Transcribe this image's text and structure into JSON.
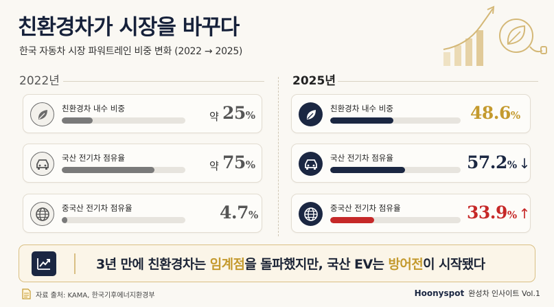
{
  "header": {
    "title": "친환경차가 시장을 바꾸다",
    "subtitle": "한국 자동차 시장 파워트레인 비중 변화 (2022 → 2025)"
  },
  "left": {
    "year": "2022년",
    "cards": [
      {
        "label": "친환경차 내수 비중",
        "prefix": "약",
        "value": "25",
        "unit": "%",
        "arrow": "",
        "icon": "leaf-icon",
        "fill": 0.25,
        "value_color": "#555555",
        "bar_color": "#7a7a7a"
      },
      {
        "label": "국산 전기차 점유율",
        "prefix": "약",
        "value": "75",
        "unit": "%",
        "arrow": "",
        "icon": "car-icon",
        "fill": 0.75,
        "value_color": "#555555",
        "bar_color": "#7a7a7a"
      },
      {
        "label": "중국산 전기차 점유율",
        "prefix": "",
        "value": "4.7",
        "unit": "%",
        "arrow": "",
        "icon": "globe-icon",
        "fill": 0.047,
        "value_color": "#555555",
        "bar_color": "#7a7a7a"
      }
    ]
  },
  "right": {
    "year": "2025년",
    "cards": [
      {
        "label": "친환경차 내수 비중",
        "prefix": "",
        "value": "48.6",
        "unit": "%",
        "arrow": "",
        "icon": "leaf-icon",
        "fill": 0.486,
        "value_color": "#c49a2e",
        "bar_color": "#1b2742"
      },
      {
        "label": "국산 전기차 점유율",
        "prefix": "",
        "value": "57.2",
        "unit": "%",
        "arrow": "↓",
        "icon": "car-icon",
        "fill": 0.572,
        "value_color": "#1b2742",
        "bar_color": "#1b2742"
      },
      {
        "label": "중국산 전기차 점유율",
        "prefix": "",
        "value": "33.9",
        "unit": "%",
        "arrow": "↑",
        "icon": "globe-icon",
        "fill": 0.339,
        "value_color": "#c62828",
        "bar_color": "#c62828"
      }
    ]
  },
  "banner": {
    "part1": "3년 만에 친환경차는 ",
    "highlight1": "임계점",
    "part2": "을 돌파했지만, 국산 EV는 ",
    "highlight2": "방어전",
    "part3": "이 시작됐다",
    "icon": "trend-chart-icon"
  },
  "footer": {
    "source": "자료 출처: KAMA, 한국기후에너지환경부",
    "brand": "Hoonyspot",
    "series": "완성차 인사이트 Vol.1"
  }
}
